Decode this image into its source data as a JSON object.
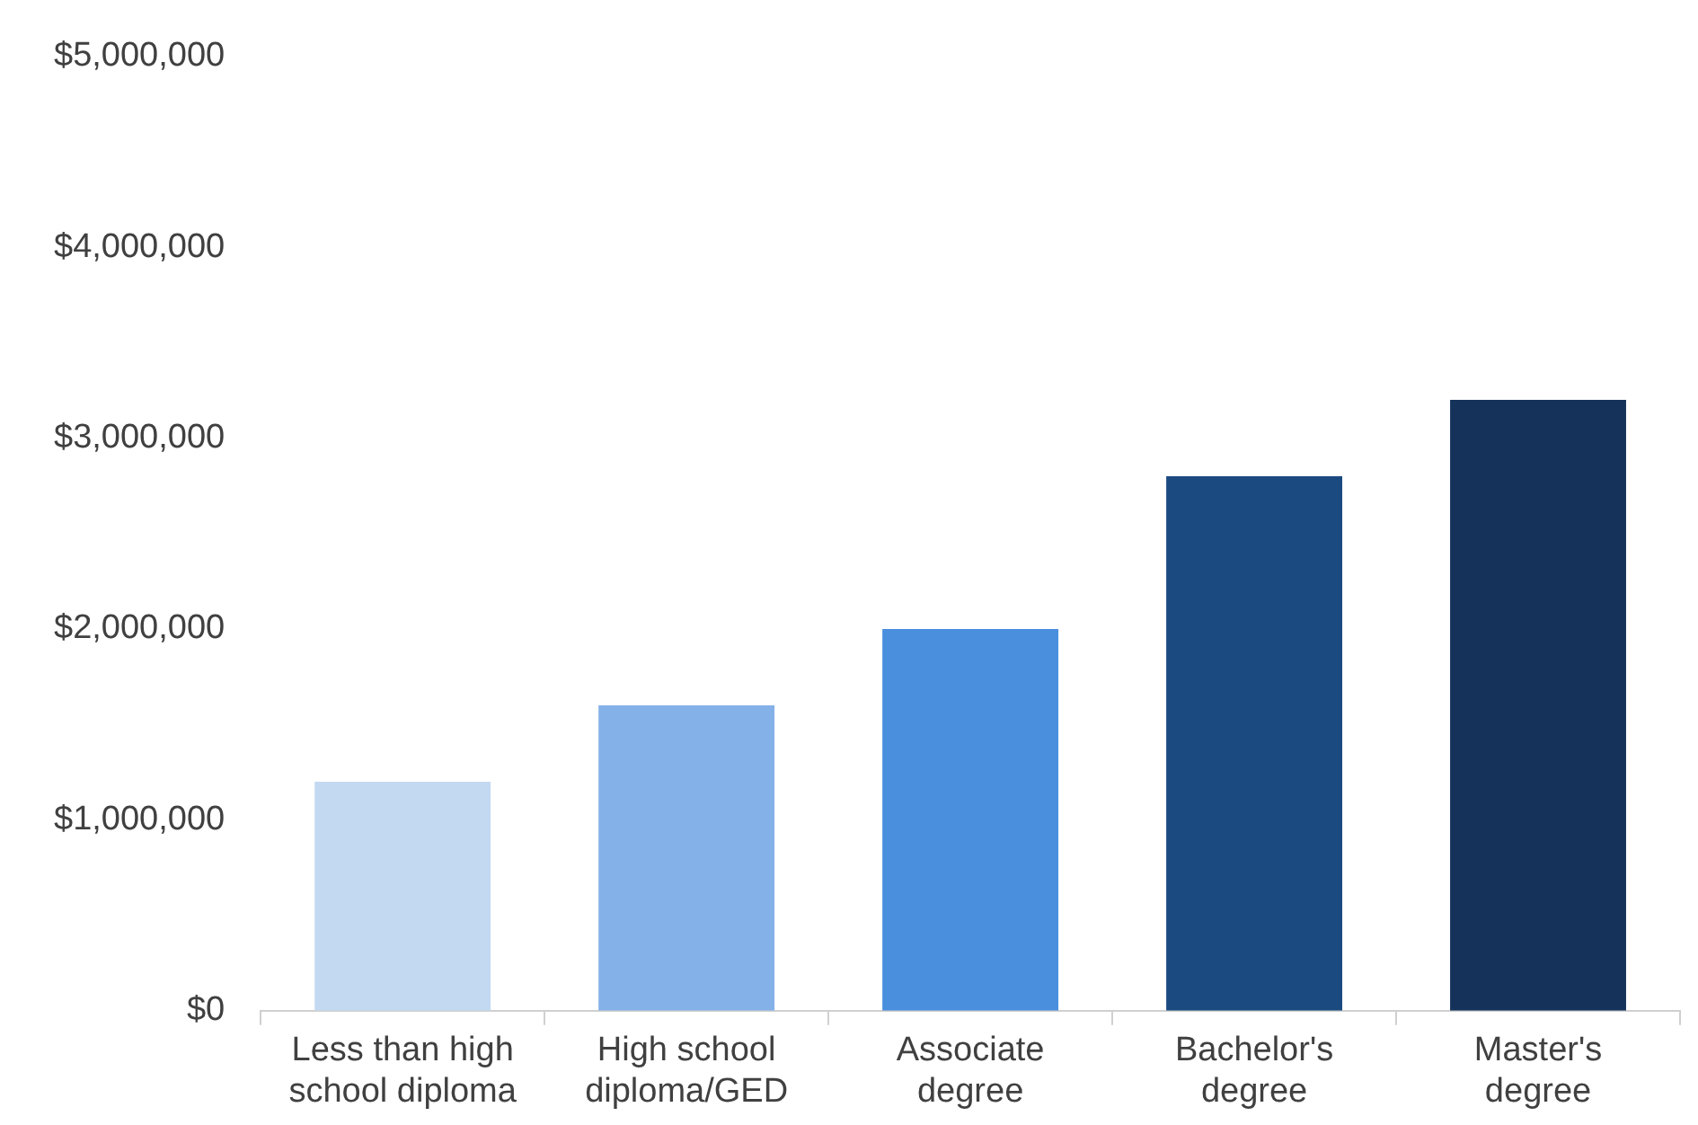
{
  "chart_data": {
    "type": "bar",
    "categories": [
      "Less than high school diploma",
      "High school diploma/GED",
      "Associate degree",
      "Bachelor's degree",
      "Master's degree"
    ],
    "values": [
      1200000,
      1600000,
      2000000,
      2800000,
      3200000
    ],
    "colors": [
      "#c3d9f2",
      "#84b1e8",
      "#4a8ede",
      "#1b4a80",
      "#14325a"
    ],
    "ylim": [
      0,
      5000000
    ],
    "yticks": [
      {
        "value": 0,
        "label": "$0"
      },
      {
        "value": 1000000,
        "label": "$1,000,000"
      },
      {
        "value": 2000000,
        "label": "$2,000,000"
      },
      {
        "value": 3000000,
        "label": "$3,000,000"
      },
      {
        "value": 4000000,
        "label": "$4,000,000"
      },
      {
        "value": 5000000,
        "label": "$5,000,000"
      }
    ],
    "grid": false,
    "legend": false
  }
}
